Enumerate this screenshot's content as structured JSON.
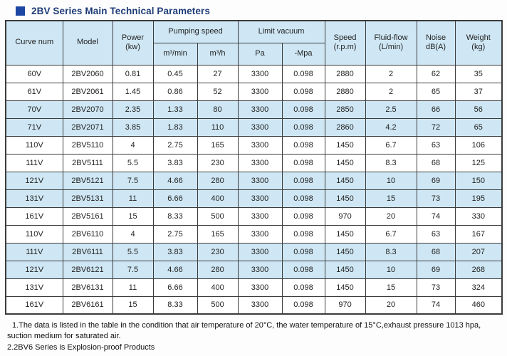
{
  "title": {
    "text": "2BV Series Main Technical Parameters"
  },
  "colors": {
    "row_highlight": "#cfe7f4",
    "title_text": "#1e3c78",
    "title_square": "#1c46a3",
    "border": "#3b3b3b"
  },
  "table": {
    "header": {
      "curve_num": "Curve num",
      "model": "Model",
      "power_line1": "Power",
      "power_line2": "(kw)",
      "pumping_speed": "Pumping speed",
      "pumping_sub1": "m³/min",
      "pumping_sub2": "m³/h",
      "limit_vacuum": "Limit vacuum",
      "vacuum_sub1": "Pa",
      "vacuum_sub2": "-Mpa",
      "speed_line1": "Speed",
      "speed_line2": "(r.p.m)",
      "fluid_line1": "Fluid-flow",
      "fluid_line2": "(L/min)",
      "noise_line1": "Noise",
      "noise_line2": "dB(A)",
      "weight_line1": "Weight",
      "weight_line2": "(kg)"
    },
    "column_keys": [
      "curve",
      "model",
      "power",
      "m3min",
      "m3h",
      "pa",
      "mpa",
      "speed",
      "fluid",
      "noise",
      "weight"
    ],
    "rows": [
      {
        "curve": "60V",
        "model": "2BV2060",
        "power": "0.81",
        "m3min": "0.45",
        "m3h": "27",
        "pa": "3300",
        "mpa": "0.098",
        "speed": "2880",
        "fluid": "2",
        "noise": "62",
        "weight": "35",
        "shaded": false
      },
      {
        "curve": "61V",
        "model": "2BV2061",
        "power": "1.45",
        "m3min": "0.86",
        "m3h": "52",
        "pa": "3300",
        "mpa": "0.098",
        "speed": "2880",
        "fluid": "2",
        "noise": "65",
        "weight": "37",
        "shaded": false
      },
      {
        "curve": "70V",
        "model": "2BV2070",
        "power": "2.35",
        "m3min": "1.33",
        "m3h": "80",
        "pa": "3300",
        "mpa": "0.098",
        "speed": "2850",
        "fluid": "2.5",
        "noise": "66",
        "weight": "56",
        "shaded": true
      },
      {
        "curve": "71V",
        "model": "2BV2071",
        "power": "3.85",
        "m3min": "1.83",
        "m3h": "110",
        "pa": "3300",
        "mpa": "0.098",
        "speed": "2860",
        "fluid": "4.2",
        "noise": "72",
        "weight": "65",
        "shaded": true
      },
      {
        "curve": "110V",
        "model": "2BV5110",
        "power": "4",
        "m3min": "2.75",
        "m3h": "165",
        "pa": "3300",
        "mpa": "0.098",
        "speed": "1450",
        "fluid": "6.7",
        "noise": "63",
        "weight": "106",
        "shaded": false
      },
      {
        "curve": "111V",
        "model": "2BV5111",
        "power": "5.5",
        "m3min": "3.83",
        "m3h": "230",
        "pa": "3300",
        "mpa": "0.098",
        "speed": "1450",
        "fluid": "8.3",
        "noise": "68",
        "weight": "125",
        "shaded": false
      },
      {
        "curve": "121V",
        "model": "2BV5121",
        "power": "7.5",
        "m3min": "4.66",
        "m3h": "280",
        "pa": "3300",
        "mpa": "0.098",
        "speed": "1450",
        "fluid": "10",
        "noise": "69",
        "weight": "150",
        "shaded": true
      },
      {
        "curve": "131V",
        "model": "2BV5131",
        "power": "11",
        "m3min": "6.66",
        "m3h": "400",
        "pa": "3300",
        "mpa": "0.098",
        "speed": "1450",
        "fluid": "15",
        "noise": "73",
        "weight": "195",
        "shaded": true
      },
      {
        "curve": "161V",
        "model": "2BV5161",
        "power": "15",
        "m3min": "8.33",
        "m3h": "500",
        "pa": "3300",
        "mpa": "0.098",
        "speed": "970",
        "fluid": "20",
        "noise": "74",
        "weight": "330",
        "shaded": false
      },
      {
        "curve": "110V",
        "model": "2BV6110",
        "power": "4",
        "m3min": "2.75",
        "m3h": "165",
        "pa": "3300",
        "mpa": "0.098",
        "speed": "1450",
        "fluid": "6.7",
        "noise": "63",
        "weight": "167",
        "shaded": false
      },
      {
        "curve": "111V",
        "model": "2BV6111",
        "power": "5.5",
        "m3min": "3.83",
        "m3h": "230",
        "pa": "3300",
        "mpa": "0.098",
        "speed": "1450",
        "fluid": "8.3",
        "noise": "68",
        "weight": "207",
        "shaded": true
      },
      {
        "curve": "121V",
        "model": "2BV6121",
        "power": "7.5",
        "m3min": "4.66",
        "m3h": "280",
        "pa": "3300",
        "mpa": "0.098",
        "speed": "1450",
        "fluid": "10",
        "noise": "69",
        "weight": "268",
        "shaded": true
      },
      {
        "curve": "131V",
        "model": "2BV6131",
        "power": "11",
        "m3min": "6.66",
        "m3h": "400",
        "pa": "3300",
        "mpa": "0.098",
        "speed": "1450",
        "fluid": "15",
        "noise": "73",
        "weight": "324",
        "shaded": false
      },
      {
        "curve": "161V",
        "model": "2BV6161",
        "power": "15",
        "m3min": "8.33",
        "m3h": "500",
        "pa": "3300",
        "mpa": "0.098",
        "speed": "970",
        "fluid": "20",
        "noise": "74",
        "weight": "460",
        "shaded": false
      }
    ]
  },
  "notes": [
    "1.The data is listed in the table in the condition that air temperature of 20°C, the water temperature of 15°C,exhaust pressure 1013 hpa, suction medium for saturated air.",
    "2.2BV6 Series is Explosion-proof Products"
  ]
}
